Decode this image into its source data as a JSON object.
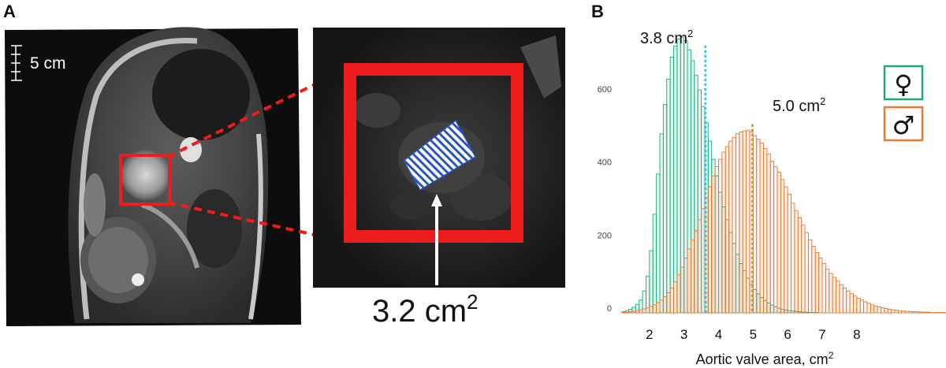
{
  "panels": {
    "a_label": "A",
    "b_label": "B"
  },
  "mri": {
    "scale_label": "5 cm",
    "measurement_value": "3.2 cm",
    "measurement_sup": "2"
  },
  "colors": {
    "female": "#1aaa7e",
    "male": "#e5792f",
    "female_mean_line": "#2ec3e0",
    "male_mean_line": "#e58a1a",
    "roi": "#ee1c1c",
    "hatch": "#2b56b8"
  },
  "chart_data": {
    "type": "histogram",
    "xlabel": "Aortic valve area, cm",
    "xlabel_sup": "2",
    "x_ticks": [
      "2",
      "3",
      "4",
      "5",
      "6",
      "7",
      "8"
    ],
    "y_ticks": [
      "0",
      "200",
      "400",
      "600"
    ],
    "xlim": [
      1.0,
      10.4
    ],
    "ylim": [
      0,
      770
    ],
    "grid": false,
    "legend": [
      "♀",
      "♂"
    ],
    "legend_position": "top-right",
    "bin_start": 1.2,
    "bin_width": 0.1,
    "series": [
      {
        "name": "♀",
        "values": [
          3,
          6,
          10,
          15,
          23,
          35,
          60,
          100,
          170,
          270,
          380,
          490,
          570,
          640,
          700,
          730,
          750,
          755,
          745,
          720,
          690,
          650,
          610,
          565,
          520,
          470,
          420,
          375,
          330,
          290,
          255,
          220,
          190,
          160,
          135,
          115,
          95,
          78,
          64,
          52,
          42,
          34,
          27,
          21,
          17,
          13,
          10,
          8,
          6,
          5,
          4,
          3,
          2,
          2,
          1,
          1,
          1,
          0,
          0,
          0,
          0,
          0,
          0,
          0,
          0,
          0,
          0,
          0,
          0,
          0,
          0,
          0,
          0,
          0,
          0,
          0,
          0,
          0,
          0,
          0,
          0,
          0,
          0,
          0,
          0,
          0,
          0,
          0,
          0,
          0,
          0,
          0,
          0,
          0,
          0
        ]
      },
      {
        "name": "♂",
        "values": [
          1,
          2,
          3,
          4,
          6,
          8,
          11,
          14,
          18,
          22,
          28,
          35,
          44,
          55,
          68,
          85,
          105,
          125,
          150,
          175,
          200,
          225,
          255,
          285,
          315,
          345,
          375,
          400,
          420,
          440,
          455,
          470,
          480,
          490,
          495,
          498,
          500,
          495,
          485,
          475,
          465,
          450,
          435,
          415,
          400,
          385,
          365,
          345,
          325,
          300,
          280,
          260,
          240,
          220,
          200,
          182,
          165,
          150,
          135,
          120,
          108,
          97,
          87,
          77,
          68,
          60,
          53,
          46,
          40,
          35,
          30,
          26,
          22,
          19,
          16,
          14,
          12,
          10,
          8,
          7,
          6,
          5,
          4,
          4,
          3,
          3,
          2,
          2,
          2,
          1,
          1,
          1,
          1,
          1,
          1
        ]
      }
    ],
    "annotations": [
      {
        "text": "3.8 cm",
        "sup": "2",
        "x": 3.62,
        "series": "♀"
      },
      {
        "text": "5.0 cm",
        "sup": "2",
        "x": 4.98,
        "series": "♂"
      }
    ]
  }
}
